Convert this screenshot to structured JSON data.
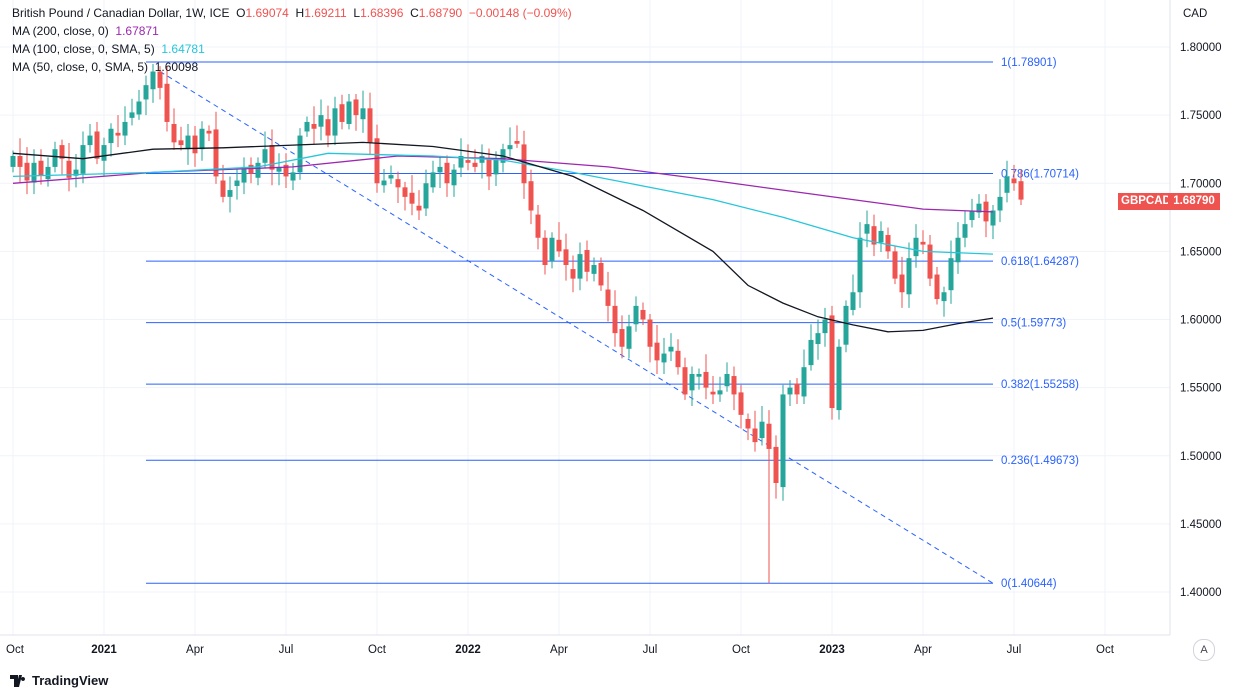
{
  "legend": {
    "title": "British Pound / Canadian Dollar, 1W, ICE",
    "open_label": "O",
    "open": "1.69074",
    "high_label": "H",
    "high": "1.69211",
    "low_label": "L",
    "low": "1.68396",
    "close_label": "C",
    "close": "1.68790",
    "change": "−0.00148 (−0.09%)",
    "ma200_label": "MA (200, close, 0)",
    "ma200_value": "1.67871",
    "ma100_label": "MA (100, close, 0, SMA, 5)",
    "ma100_value": "1.64781",
    "ma50_label": "MA (50, close, 0, SMA, 5)",
    "ma50_value": "1.60098"
  },
  "branding": {
    "name": "TradingView"
  },
  "controls": {
    "auto_scale": "A"
  },
  "colors": {
    "up": "#26a69a",
    "down": "#ef5350",
    "fib": "#2962ff",
    "ma200": "#9c27b0",
    "ma100": "#26c6da",
    "ma50": "#131722",
    "grid": "#f0f3fa"
  },
  "chart_data": {
    "type": "candlestick",
    "symbol": "GBPCAD",
    "timeframe": "1W",
    "currency_label": "CAD",
    "last_price_label": "GBPCAD",
    "last_price": 1.6879,
    "ylim": [
      1.36,
      1.83
    ],
    "y_ticks": [
      1.4,
      1.45,
      1.5,
      1.55,
      1.6,
      1.65,
      1.7,
      1.75,
      1.8
    ],
    "y_tick_labels": [
      "1.40000",
      "1.45000",
      "1.50000",
      "1.55000",
      "1.60000",
      "1.65000",
      "1.70000",
      "1.75000",
      "1.80000"
    ],
    "x_index_range": [
      0,
      160
    ],
    "x_ticks": [
      {
        "label": "Oct",
        "i": 0,
        "bold": false
      },
      {
        "label": "2021",
        "i": 13,
        "bold": true
      },
      {
        "label": "Apr",
        "i": 26,
        "bold": false
      },
      {
        "label": "Jul",
        "i": 39,
        "bold": false
      },
      {
        "label": "Oct",
        "i": 52,
        "bold": false
      },
      {
        "label": "2022",
        "i": 65,
        "bold": true
      },
      {
        "label": "Apr",
        "i": 78,
        "bold": false
      },
      {
        "label": "Jul",
        "i": 91,
        "bold": false
      },
      {
        "label": "Oct",
        "i": 104,
        "bold": false
      },
      {
        "label": "2023",
        "i": 117,
        "bold": true
      },
      {
        "label": "Apr",
        "i": 130,
        "bold": false
      },
      {
        "label": "Jul",
        "i": 143,
        "bold": false
      },
      {
        "label": "Oct",
        "i": 156,
        "bold": false
      }
    ],
    "fib_start_i": 19,
    "fib_end_i": 140,
    "fib_levels": [
      {
        "label": "1(1.78901)",
        "value": 1.78901
      },
      {
        "label": "0.786(1.70714)",
        "value": 1.70714
      },
      {
        "label": "0.618(1.64287)",
        "value": 1.64287
      },
      {
        "label": "0.5(1.59773)",
        "value": 1.59773
      },
      {
        "label": "0.382(1.55258)",
        "value": 1.55258
      },
      {
        "label": "0.236(1.49673)",
        "value": 1.49673
      },
      {
        "label": "0(1.40644)",
        "value": 1.40644
      }
    ],
    "trendline": {
      "from": [
        21,
        1.782
      ],
      "to": [
        140,
        1.40644
      ]
    },
    "close_series": [
      1.72,
      1.712,
      1.702,
      1.715,
      1.706,
      1.712,
      1.725,
      1.718,
      1.704,
      1.71,
      1.728,
      1.735,
      1.718,
      1.728,
      1.74,
      1.735,
      1.745,
      1.752,
      1.76,
      1.772,
      1.782,
      1.77,
      1.745,
      1.73,
      1.728,
      1.735,
      1.722,
      1.74,
      1.738,
      1.705,
      1.69,
      1.695,
      1.702,
      1.712,
      1.707,
      1.715,
      1.725,
      1.71,
      1.712,
      1.705,
      1.708,
      1.735,
      1.745,
      1.74,
      1.75,
      1.735,
      1.755,
      1.745,
      1.76,
      1.75,
      1.755,
      1.73,
      1.7,
      1.702,
      1.706,
      1.697,
      1.69,
      1.685,
      1.68,
      1.7,
      1.708,
      1.712,
      1.7,
      1.71,
      1.72,
      1.715,
      1.712,
      1.72,
      1.705,
      1.718,
      1.725,
      1.728,
      1.73,
      1.7,
      1.68,
      1.66,
      1.64,
      1.66,
      1.65,
      1.64,
      1.63,
      1.648,
      1.635,
      1.64,
      1.625,
      1.61,
      1.59,
      1.58,
      1.595,
      1.61,
      1.6,
      1.58,
      1.57,
      1.575,
      1.58,
      1.565,
      1.545,
      1.56,
      1.56,
      1.55,
      1.545,
      1.548,
      1.56,
      1.545,
      1.53,
      1.52,
      1.51,
      1.525,
      1.505,
      1.48,
      1.545,
      1.55,
      1.545,
      1.565,
      1.585,
      1.59,
      1.6,
      1.535,
      1.58,
      1.61,
      1.62,
      1.66,
      1.67,
      1.655,
      1.665,
      1.65,
      1.63,
      1.62,
      1.645,
      1.66,
      1.655,
      1.63,
      1.615,
      1.62,
      1.645,
      1.66,
      1.67,
      1.68,
      1.685,
      1.672,
      1.68,
      1.69,
      1.705,
      1.7,
      1.688
    ],
    "series": [
      {
        "name": "MA (200, close, 0)",
        "points": [
          [
            0,
            1.7
          ],
          [
            20,
            1.708
          ],
          [
            40,
            1.712
          ],
          [
            55,
            1.72
          ],
          [
            70,
            1.718
          ],
          [
            85,
            1.712
          ],
          [
            100,
            1.702
          ],
          [
            110,
            1.695
          ],
          [
            120,
            1.688
          ],
          [
            130,
            1.681
          ],
          [
            140,
            1.679
          ]
        ]
      },
      {
        "name": "MA (100, close, 0, SMA, 5)",
        "points": [
          [
            0,
            1.705
          ],
          [
            20,
            1.708
          ],
          [
            35,
            1.712
          ],
          [
            45,
            1.722
          ],
          [
            60,
            1.72
          ],
          [
            70,
            1.717
          ],
          [
            80,
            1.708
          ],
          [
            90,
            1.698
          ],
          [
            100,
            1.688
          ],
          [
            110,
            1.675
          ],
          [
            120,
            1.66
          ],
          [
            130,
            1.65
          ],
          [
            140,
            1.648
          ]
        ]
      },
      {
        "name": "MA (50, close, 0, SMA, 5)",
        "points": [
          [
            0,
            1.722
          ],
          [
            10,
            1.718
          ],
          [
            20,
            1.725
          ],
          [
            30,
            1.726
          ],
          [
            40,
            1.728
          ],
          [
            50,
            1.73
          ],
          [
            60,
            1.727
          ],
          [
            70,
            1.72
          ],
          [
            80,
            1.705
          ],
          [
            90,
            1.68
          ],
          [
            100,
            1.65
          ],
          [
            105,
            1.625
          ],
          [
            110,
            1.612
          ],
          [
            115,
            1.602
          ],
          [
            120,
            1.596
          ],
          [
            125,
            1.591
          ],
          [
            130,
            1.592
          ],
          [
            135,
            1.597
          ],
          [
            140,
            1.601
          ]
        ]
      }
    ]
  }
}
